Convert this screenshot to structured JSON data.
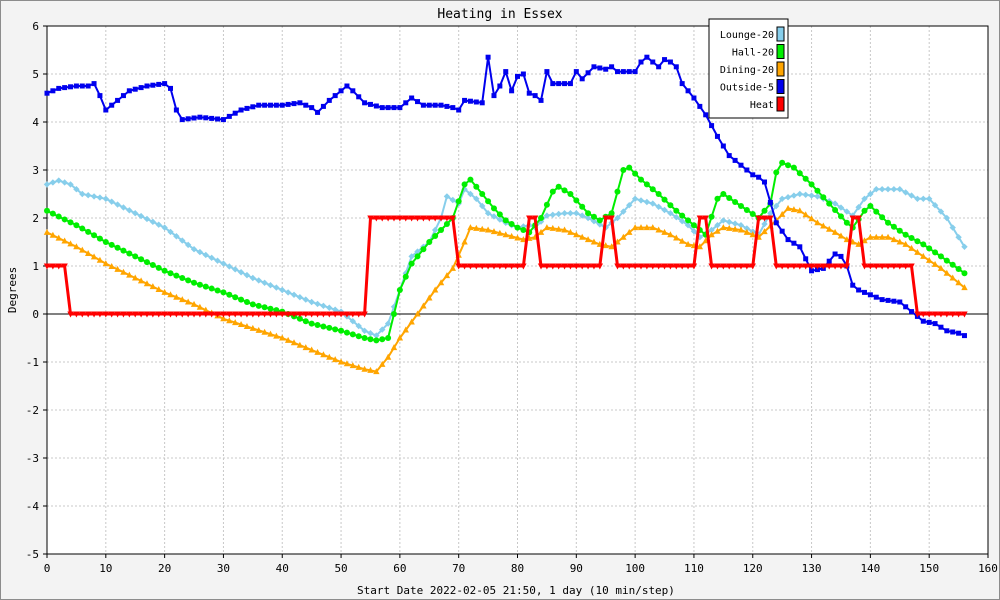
{
  "chart_data": {
    "type": "line",
    "title": "Heating in Essex",
    "xlabel": "Start Date 2022-02-05 21:50, 1 day (10 min/step)",
    "ylabel": "Degrees",
    "xlim": [
      0,
      160
    ],
    "ylim": [
      -5,
      6
    ],
    "x_ticks": [
      0,
      10,
      20,
      30,
      40,
      50,
      60,
      70,
      80,
      90,
      100,
      110,
      120,
      130,
      140,
      150,
      160
    ],
    "y_ticks": [
      -5,
      -4,
      -3,
      -2,
      -1,
      0,
      1,
      2,
      3,
      4,
      5,
      6
    ],
    "grid": true,
    "legend_position": "top-right",
    "series": [
      {
        "name": "Lounge-20",
        "color": "#87ceeb",
        "marker": "diamond",
        "points": [
          [
            0,
            2.7
          ],
          [
            2,
            2.78
          ],
          [
            4,
            2.7
          ],
          [
            6,
            2.5
          ],
          [
            10,
            2.4
          ],
          [
            15,
            2.1
          ],
          [
            20,
            1.8
          ],
          [
            25,
            1.35
          ],
          [
            30,
            1.05
          ],
          [
            35,
            0.75
          ],
          [
            40,
            0.5
          ],
          [
            45,
            0.25
          ],
          [
            50,
            0.05
          ],
          [
            54,
            -0.35
          ],
          [
            56,
            -0.45
          ],
          [
            58,
            -0.2
          ],
          [
            60,
            0.5
          ],
          [
            62,
            1.2
          ],
          [
            65,
            1.5
          ],
          [
            67,
            2.0
          ],
          [
            68,
            2.45
          ],
          [
            70,
            2.3
          ],
          [
            71,
            2.6
          ],
          [
            73,
            2.4
          ],
          [
            75,
            2.1
          ],
          [
            78,
            1.9
          ],
          [
            80,
            1.8
          ],
          [
            82,
            1.85
          ],
          [
            83,
            1.8
          ],
          [
            85,
            2.05
          ],
          [
            88,
            2.1
          ],
          [
            90,
            2.1
          ],
          [
            92,
            2.0
          ],
          [
            95,
            1.8
          ],
          [
            97,
            2.0
          ],
          [
            100,
            2.4
          ],
          [
            103,
            2.3
          ],
          [
            106,
            2.1
          ],
          [
            109,
            1.85
          ],
          [
            111,
            1.6
          ],
          [
            113,
            1.75
          ],
          [
            115,
            1.95
          ],
          [
            118,
            1.85
          ],
          [
            121,
            1.65
          ],
          [
            123,
            2.1
          ],
          [
            125,
            2.4
          ],
          [
            128,
            2.5
          ],
          [
            131,
            2.45
          ],
          [
            134,
            2.3
          ],
          [
            137,
            2.05
          ],
          [
            139,
            2.4
          ],
          [
            141,
            2.6
          ],
          [
            145,
            2.6
          ],
          [
            148,
            2.4
          ],
          [
            150,
            2.4
          ],
          [
            153,
            2.0
          ],
          [
            156,
            1.4
          ]
        ]
      },
      {
        "name": "Hall-20",
        "color": "#00ee00",
        "marker": "circle",
        "points": [
          [
            0,
            2.15
          ],
          [
            5,
            1.85
          ],
          [
            10,
            1.5
          ],
          [
            15,
            1.2
          ],
          [
            20,
            0.9
          ],
          [
            25,
            0.65
          ],
          [
            30,
            0.45
          ],
          [
            35,
            0.2
          ],
          [
            40,
            0.05
          ],
          [
            45,
            -0.2
          ],
          [
            50,
            -0.35
          ],
          [
            54,
            -0.5
          ],
          [
            56,
            -0.55
          ],
          [
            58,
            -0.5
          ],
          [
            59,
            0.0
          ],
          [
            60,
            0.5
          ],
          [
            62,
            1.05
          ],
          [
            65,
            1.5
          ],
          [
            67,
            1.75
          ],
          [
            69,
            2.0
          ],
          [
            71,
            2.7
          ],
          [
            72,
            2.8
          ],
          [
            74,
            2.5
          ],
          [
            76,
            2.2
          ],
          [
            78,
            1.95
          ],
          [
            80,
            1.8
          ],
          [
            82,
            1.7
          ],
          [
            84,
            2.0
          ],
          [
            86,
            2.55
          ],
          [
            87,
            2.65
          ],
          [
            89,
            2.5
          ],
          [
            92,
            2.1
          ],
          [
            94,
            1.95
          ],
          [
            96,
            2.1
          ],
          [
            98,
            3.0
          ],
          [
            99,
            3.05
          ],
          [
            101,
            2.8
          ],
          [
            104,
            2.5
          ],
          [
            107,
            2.15
          ],
          [
            110,
            1.85
          ],
          [
            112,
            1.65
          ],
          [
            114,
            2.4
          ],
          [
            115,
            2.5
          ],
          [
            118,
            2.25
          ],
          [
            121,
            2.0
          ],
          [
            123,
            2.3
          ],
          [
            124,
            2.95
          ],
          [
            125,
            3.15
          ],
          [
            127,
            3.05
          ],
          [
            130,
            2.7
          ],
          [
            133,
            2.3
          ],
          [
            136,
            1.9
          ],
          [
            137,
            1.8
          ],
          [
            139,
            2.15
          ],
          [
            140,
            2.25
          ],
          [
            143,
            1.9
          ],
          [
            146,
            1.65
          ],
          [
            149,
            1.45
          ],
          [
            152,
            1.2
          ],
          [
            156,
            0.85
          ]
        ]
      },
      {
        "name": "Dining-20",
        "color": "#ffa500",
        "marker": "triangle",
        "points": [
          [
            0,
            1.7
          ],
          [
            5,
            1.4
          ],
          [
            10,
            1.05
          ],
          [
            15,
            0.75
          ],
          [
            20,
            0.45
          ],
          [
            25,
            0.2
          ],
          [
            30,
            -0.1
          ],
          [
            35,
            -0.3
          ],
          [
            40,
            -0.5
          ],
          [
            45,
            -0.75
          ],
          [
            50,
            -1.0
          ],
          [
            54,
            -1.15
          ],
          [
            56,
            -1.2
          ],
          [
            58,
            -0.9
          ],
          [
            60,
            -0.5
          ],
          [
            63,
            0.0
          ],
          [
            66,
            0.5
          ],
          [
            69,
            0.95
          ],
          [
            71,
            1.5
          ],
          [
            72,
            1.8
          ],
          [
            75,
            1.75
          ],
          [
            78,
            1.65
          ],
          [
            81,
            1.55
          ],
          [
            83,
            1.6
          ],
          [
            85,
            1.8
          ],
          [
            88,
            1.75
          ],
          [
            91,
            1.6
          ],
          [
            94,
            1.45
          ],
          [
            96,
            1.4
          ],
          [
            98,
            1.6
          ],
          [
            100,
            1.8
          ],
          [
            103,
            1.8
          ],
          [
            106,
            1.65
          ],
          [
            109,
            1.45
          ],
          [
            111,
            1.4
          ],
          [
            113,
            1.65
          ],
          [
            115,
            1.8
          ],
          [
            118,
            1.75
          ],
          [
            121,
            1.6
          ],
          [
            124,
            1.95
          ],
          [
            126,
            2.2
          ],
          [
            128,
            2.15
          ],
          [
            131,
            1.9
          ],
          [
            134,
            1.7
          ],
          [
            136,
            1.55
          ],
          [
            138,
            1.45
          ],
          [
            140,
            1.6
          ],
          [
            143,
            1.6
          ],
          [
            146,
            1.45
          ],
          [
            149,
            1.2
          ],
          [
            152,
            0.95
          ],
          [
            156,
            0.55
          ]
        ]
      },
      {
        "name": "Outside-5",
        "color": "#0000ee",
        "marker": "square",
        "points": [
          [
            0,
            4.6
          ],
          [
            2,
            4.7
          ],
          [
            5,
            4.75
          ],
          [
            7,
            4.75
          ],
          [
            8,
            4.8
          ],
          [
            9,
            4.55
          ],
          [
            10,
            4.25
          ],
          [
            12,
            4.45
          ],
          [
            14,
            4.65
          ],
          [
            17,
            4.75
          ],
          [
            20,
            4.8
          ],
          [
            21,
            4.7
          ],
          [
            22,
            4.25
          ],
          [
            23,
            4.05
          ],
          [
            26,
            4.1
          ],
          [
            30,
            4.05
          ],
          [
            33,
            4.25
          ],
          [
            36,
            4.35
          ],
          [
            40,
            4.35
          ],
          [
            43,
            4.4
          ],
          [
            45,
            4.3
          ],
          [
            46,
            4.2
          ],
          [
            48,
            4.45
          ],
          [
            50,
            4.65
          ],
          [
            51,
            4.75
          ],
          [
            52,
            4.65
          ],
          [
            54,
            4.4
          ],
          [
            57,
            4.3
          ],
          [
            60,
            4.3
          ],
          [
            62,
            4.5
          ],
          [
            64,
            4.35
          ],
          [
            67,
            4.35
          ],
          [
            69,
            4.3
          ],
          [
            70,
            4.25
          ],
          [
            71,
            4.45
          ],
          [
            74,
            4.4
          ],
          [
            75,
            5.35
          ],
          [
            76,
            4.55
          ],
          [
            77,
            4.75
          ],
          [
            78,
            5.05
          ],
          [
            79,
            4.65
          ],
          [
            80,
            4.95
          ],
          [
            81,
            5.0
          ],
          [
            82,
            4.6
          ],
          [
            83,
            4.55
          ],
          [
            84,
            4.45
          ],
          [
            85,
            5.05
          ],
          [
            86,
            4.8
          ],
          [
            89,
            4.8
          ],
          [
            90,
            5.05
          ],
          [
            91,
            4.9
          ],
          [
            93,
            5.15
          ],
          [
            95,
            5.1
          ],
          [
            96,
            5.15
          ],
          [
            97,
            5.05
          ],
          [
            99,
            5.05
          ],
          [
            100,
            5.05
          ],
          [
            101,
            5.25
          ],
          [
            102,
            5.35
          ],
          [
            103,
            5.25
          ],
          [
            104,
            5.15
          ],
          [
            105,
            5.3
          ],
          [
            106,
            5.25
          ],
          [
            107,
            5.15
          ],
          [
            108,
            4.8
          ],
          [
            110,
            4.5
          ],
          [
            112,
            4.15
          ],
          [
            114,
            3.7
          ],
          [
            116,
            3.3
          ],
          [
            118,
            3.1
          ],
          [
            120,
            2.9
          ],
          [
            121,
            2.85
          ],
          [
            122,
            2.75
          ],
          [
            124,
            1.9
          ],
          [
            126,
            1.55
          ],
          [
            128,
            1.4
          ],
          [
            130,
            0.9
          ],
          [
            132,
            0.95
          ],
          [
            134,
            1.25
          ],
          [
            135,
            1.2
          ],
          [
            136,
            1.0
          ],
          [
            137,
            0.6
          ],
          [
            138,
            0.5
          ],
          [
            140,
            0.4
          ],
          [
            142,
            0.3
          ],
          [
            145,
            0.25
          ],
          [
            147,
            0.05
          ],
          [
            149,
            -0.15
          ],
          [
            151,
            -0.2
          ],
          [
            153,
            -0.35
          ],
          [
            155,
            -0.4
          ],
          [
            156,
            -0.45
          ]
        ]
      },
      {
        "name": "Heat",
        "color": "#ff0000",
        "marker": "triangle-down",
        "points": [
          [
            0,
            1
          ],
          [
            3,
            1
          ],
          [
            4,
            0
          ],
          [
            54,
            0
          ],
          [
            55,
            2
          ],
          [
            69,
            2
          ],
          [
            70,
            1
          ],
          [
            81,
            1
          ],
          [
            82,
            2
          ],
          [
            83,
            2
          ],
          [
            84,
            1
          ],
          [
            94,
            1
          ],
          [
            95,
            2
          ],
          [
            96,
            2
          ],
          [
            97,
            1
          ],
          [
            110,
            1
          ],
          [
            111,
            2
          ],
          [
            112,
            2
          ],
          [
            113,
            1
          ],
          [
            120,
            1
          ],
          [
            121,
            2
          ],
          [
            123,
            2
          ],
          [
            124,
            1
          ],
          [
            136,
            1
          ],
          [
            137,
            2
          ],
          [
            138,
            2
          ],
          [
            139,
            1
          ],
          [
            147,
            1
          ],
          [
            148,
            0
          ],
          [
            156,
            0
          ]
        ]
      }
    ]
  }
}
